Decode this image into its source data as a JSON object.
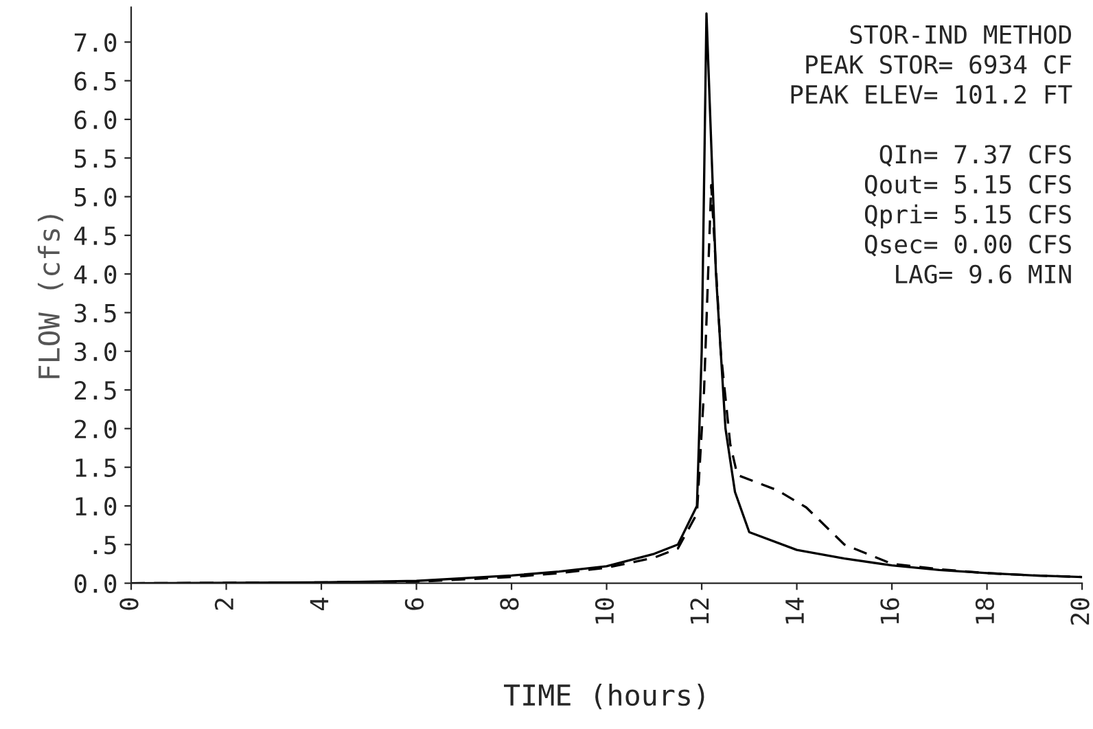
{
  "chart_data": {
    "type": "line",
    "xlabel": "TIME (hours)",
    "ylabel": "FLOW (cfs)",
    "xlim": [
      0,
      20
    ],
    "xticks": [
      0,
      2,
      4,
      6,
      8,
      10,
      12,
      14,
      16,
      18,
      20
    ],
    "ylim": [
      0,
      7.45
    ],
    "yticks": [
      {
        "value": 0,
        "label": "0.0"
      },
      {
        "value": 0.5,
        "label": ".5"
      },
      {
        "value": 1,
        "label": "1.0"
      },
      {
        "value": 1.5,
        "label": "1.5"
      },
      {
        "value": 2,
        "label": "2.0"
      },
      {
        "value": 2.5,
        "label": "2.5"
      },
      {
        "value": 3,
        "label": "3.0"
      },
      {
        "value": 3.5,
        "label": "3.5"
      },
      {
        "value": 4,
        "label": "4.0"
      },
      {
        "value": 4.5,
        "label": "4.5"
      },
      {
        "value": 5,
        "label": "5.0"
      },
      {
        "value": 5.5,
        "label": "5.5"
      },
      {
        "value": 6,
        "label": "6.0"
      },
      {
        "value": 6.5,
        "label": "6.5"
      },
      {
        "value": 7,
        "label": "7.0"
      }
    ],
    "grid": false,
    "legend": false,
    "series": [
      {
        "color": "#000000",
        "line_style": "solid",
        "x": [
          0,
          4,
          6,
          8,
          9,
          10,
          11,
          11.5,
          11.9,
          12.0,
          12.1,
          12.3,
          12.5,
          12.7,
          13.0,
          14.0,
          15.0,
          16.0,
          17.0,
          18.0,
          19.0,
          20.0
        ],
        "values": [
          0,
          0.01,
          0.03,
          0.1,
          0.15,
          0.22,
          0.38,
          0.5,
          1.0,
          3.0,
          7.37,
          4.0,
          2.0,
          1.18,
          0.66,
          0.43,
          0.32,
          0.23,
          0.17,
          0.13,
          0.1,
          0.08
        ]
      },
      {
        "color": "#000000",
        "line_style": "dashed",
        "x": [
          0,
          4,
          6,
          8,
          9,
          10,
          11,
          11.5,
          11.9,
          12.05,
          12.2,
          12.4,
          12.6,
          12.75,
          13.6,
          14.2,
          15.0,
          16.0,
          17.0,
          18.0,
          19.0,
          20.0
        ],
        "values": [
          0,
          0.01,
          0.02,
          0.08,
          0.13,
          0.2,
          0.33,
          0.45,
          0.9,
          2.5,
          5.15,
          3.0,
          1.8,
          1.4,
          1.2,
          0.98,
          0.5,
          0.25,
          0.18,
          0.13,
          0.1,
          0.08
        ]
      }
    ],
    "annotations": [
      "STOR-IND METHOD",
      "PEAK STOR= 6934 CF",
      "PEAK ELEV= 101.2 FT",
      "QIn= 7.37 CFS",
      "Qout= 5.15 CFS",
      "Qpri= 5.15 CFS",
      "Qsec= 0.00 CFS",
      "LAG= 9.6 MIN"
    ]
  }
}
